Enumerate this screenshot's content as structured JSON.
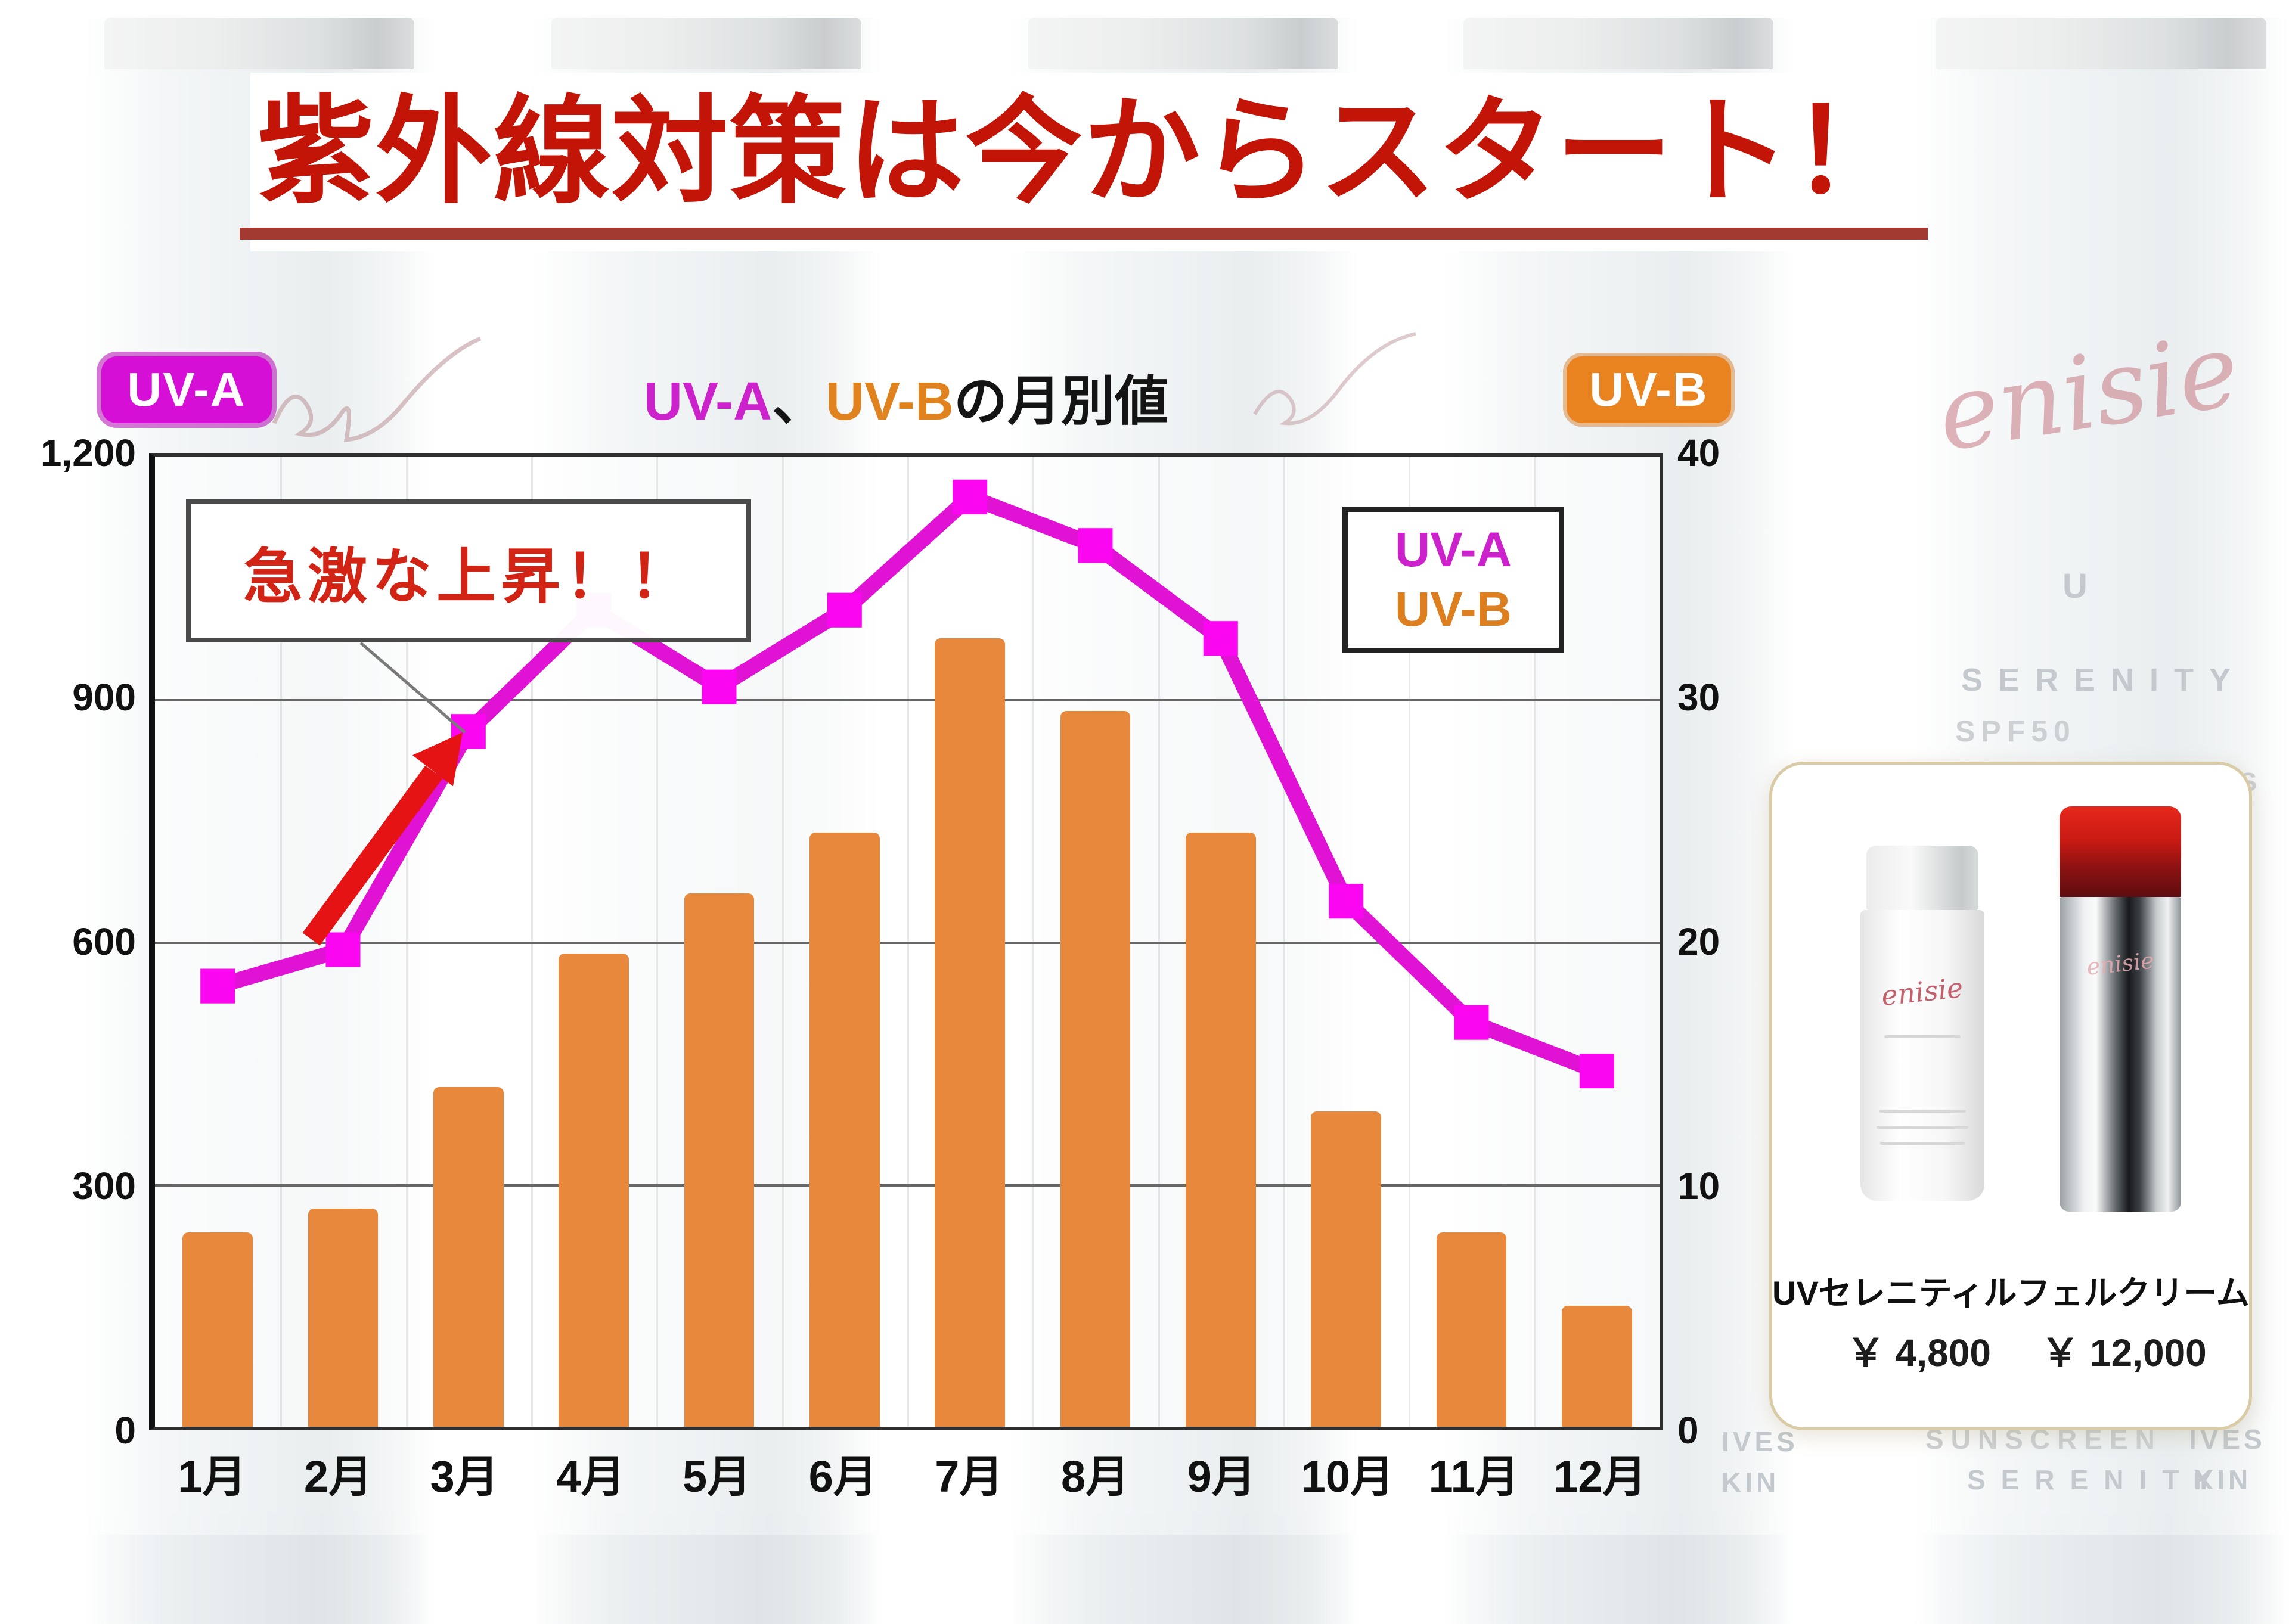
{
  "title": {
    "text": "紫外線対策は今からスタート！"
  },
  "badges": {
    "uva": "UV-A",
    "uvb": "UV-B"
  },
  "chart_title": {
    "uva": "UV-A",
    "comma": "、",
    "uvb": "UV-B",
    "suffix": "の月別値"
  },
  "legend": {
    "uva": "UV-A",
    "uvb": "UV-B"
  },
  "annotation": {
    "text": "急激な上昇！！"
  },
  "axes": {
    "left_ticks": [
      "1,200",
      "900",
      "600",
      "300",
      "0"
    ],
    "right_ticks": [
      "40",
      "30",
      "20",
      "10",
      "0"
    ]
  },
  "chart_data": {
    "type": "bar+line combo",
    "title": "UV-A、UV-Bの月別値",
    "categories": [
      "1月",
      "2月",
      "3月",
      "4月",
      "5月",
      "6月",
      "7月",
      "8月",
      "9月",
      "10月",
      "11月",
      "12月"
    ],
    "series": [
      {
        "name": "UV-A",
        "type": "line",
        "axis": "left",
        "color": "#e013d4",
        "marker_color": "#fb06f0",
        "values": [
          545,
          590,
          860,
          1010,
          915,
          1010,
          1150,
          1090,
          975,
          650,
          500,
          440
        ]
      },
      {
        "name": "UV-B",
        "type": "bar",
        "axis": "right",
        "color": "#e8883c",
        "values": [
          8,
          9,
          14,
          19.5,
          22,
          24.5,
          32.5,
          29.5,
          24.5,
          13,
          8,
          5
        ]
      }
    ],
    "left_ylim": [
      0,
      1200
    ],
    "right_ylim": [
      0,
      40
    ],
    "grid": "horizontal major + faint monthly verticals",
    "legend_position": "top-right inside plot",
    "annotation_note": "急激な上昇！！ with red arrow pointing at 3月 UV-A point"
  },
  "products": {
    "caption": "UVセレニティルフェルクリーム",
    "price_left": "￥ 4,800",
    "price_right": "￥ 12,000"
  },
  "background": {
    "brand_script": "enisie",
    "brand_u": "U",
    "brand_serenity": "SERENITY",
    "spf": "SPF50",
    "sunscreen": "SUNSCREEN",
    "ives": "IVES",
    "kin": "KIN"
  }
}
